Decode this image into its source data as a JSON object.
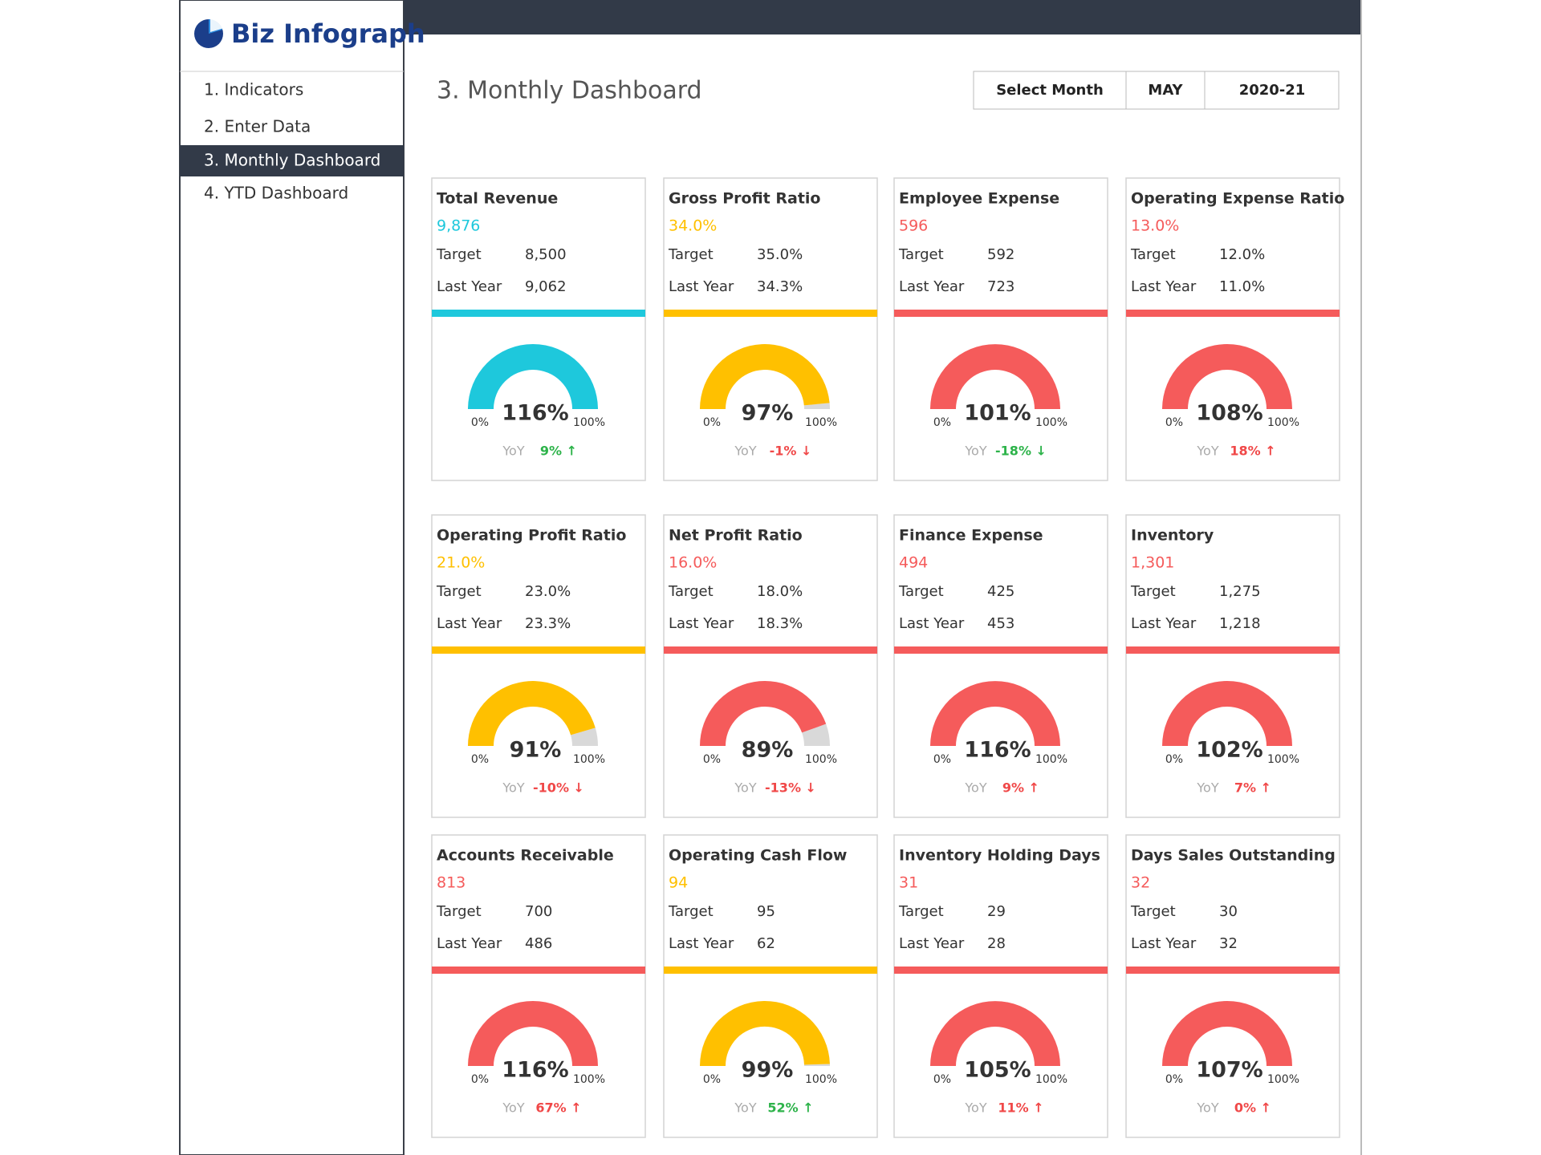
{
  "sidebar": {
    "logo": "Biz Infograph",
    "items": [
      "1. Indicators",
      "2. Enter Data",
      "3. Monthly Dashboard",
      "4. YTD Dashboard"
    ],
    "active": 2
  },
  "header": {
    "title": "3. Monthly Dashboard",
    "selector": [
      "Select Month",
      "MAY",
      "2020-21"
    ]
  },
  "labels": {
    "target": "Target",
    "last_year": "Last Year",
    "min": "0%",
    "max": "100%",
    "yoy": "YoY"
  },
  "cards": [
    {
      "title": "Total Revenue",
      "value": "9,876",
      "color": "#1ec8dc",
      "target": "8,500",
      "last_year": "9,062",
      "percent": {
        "value": 116,
        "label": "116%"
      },
      "yoy": "9% ↑",
      "yoy_color": "#2db34a"
    },
    {
      "title": "Gross Profit Ratio",
      "value": "34.0%",
      "color": "#ffc000",
      "target": "35.0%",
      "last_year": "34.3%",
      "percent": {
        "value": 97,
        "label": "97%"
      },
      "yoy": "-1% ↓",
      "yoy_color": "#f04848"
    },
    {
      "title": "Employee Expense",
      "value": "596",
      "color": "#f55b5b",
      "target": "592",
      "last_year": "723",
      "percent": {
        "value": 101,
        "label": "101%"
      },
      "yoy": "-18% ↓",
      "yoy_color": "#2db34a"
    },
    {
      "title": "Operating Expense Ratio",
      "value": "13.0%",
      "color": "#f55b5b",
      "target": "12.0%",
      "last_year": "11.0%",
      "percent": {
        "value": 108,
        "label": "108%"
      },
      "yoy": "18% ↑",
      "yoy_color": "#f04848"
    },
    {
      "title": "Operating Profit Ratio",
      "value": "21.0%",
      "color": "#ffc000",
      "target": "23.0%",
      "last_year": "23.3%",
      "percent": {
        "value": 91,
        "label": "91%"
      },
      "yoy": "-10% ↓",
      "yoy_color": "#f04848"
    },
    {
      "title": "Net Profit Ratio",
      "value": "16.0%",
      "color": "#f55b5b",
      "target": "18.0%",
      "last_year": "18.3%",
      "percent": {
        "value": 89,
        "label": "89%"
      },
      "yoy": "-13% ↓",
      "yoy_color": "#f04848"
    },
    {
      "title": "Finance Expense",
      "value": "494",
      "color": "#f55b5b",
      "target": "425",
      "last_year": "453",
      "percent": {
        "value": 116,
        "label": "116%"
      },
      "yoy": "9% ↑",
      "yoy_color": "#f04848"
    },
    {
      "title": "Inventory",
      "value": "1,301",
      "color": "#f55b5b",
      "target": "1,275",
      "last_year": "1,218",
      "percent": {
        "value": 102,
        "label": "102%"
      },
      "yoy": "7% ↑",
      "yoy_color": "#f04848"
    },
    {
      "title": "Accounts Receivable",
      "value": "813",
      "color": "#f55b5b",
      "target": "700",
      "last_year": "486",
      "percent": {
        "value": 116,
        "label": "116%"
      },
      "yoy": "67% ↑",
      "yoy_color": "#f04848"
    },
    {
      "title": "Operating Cash Flow",
      "value": "94",
      "color": "#ffc000",
      "target": "95",
      "last_year": "62",
      "percent": {
        "value": 99,
        "label": "99%"
      },
      "yoy": "52% ↑",
      "yoy_color": "#2db34a"
    },
    {
      "title": "Inventory Holding Days",
      "value": "31",
      "color": "#f55b5b",
      "target": "29",
      "last_year": "28",
      "percent": {
        "value": 105,
        "label": "105%"
      },
      "yoy": "11% ↑",
      "yoy_color": "#f04848"
    },
    {
      "title": "Days Sales Outstanding",
      "value": "32",
      "color": "#f55b5b",
      "target": "30",
      "last_year": "32",
      "percent": {
        "value": 107,
        "label": "107%"
      },
      "yoy": "0% ↑",
      "yoy_color": "#f04848"
    }
  ]
}
